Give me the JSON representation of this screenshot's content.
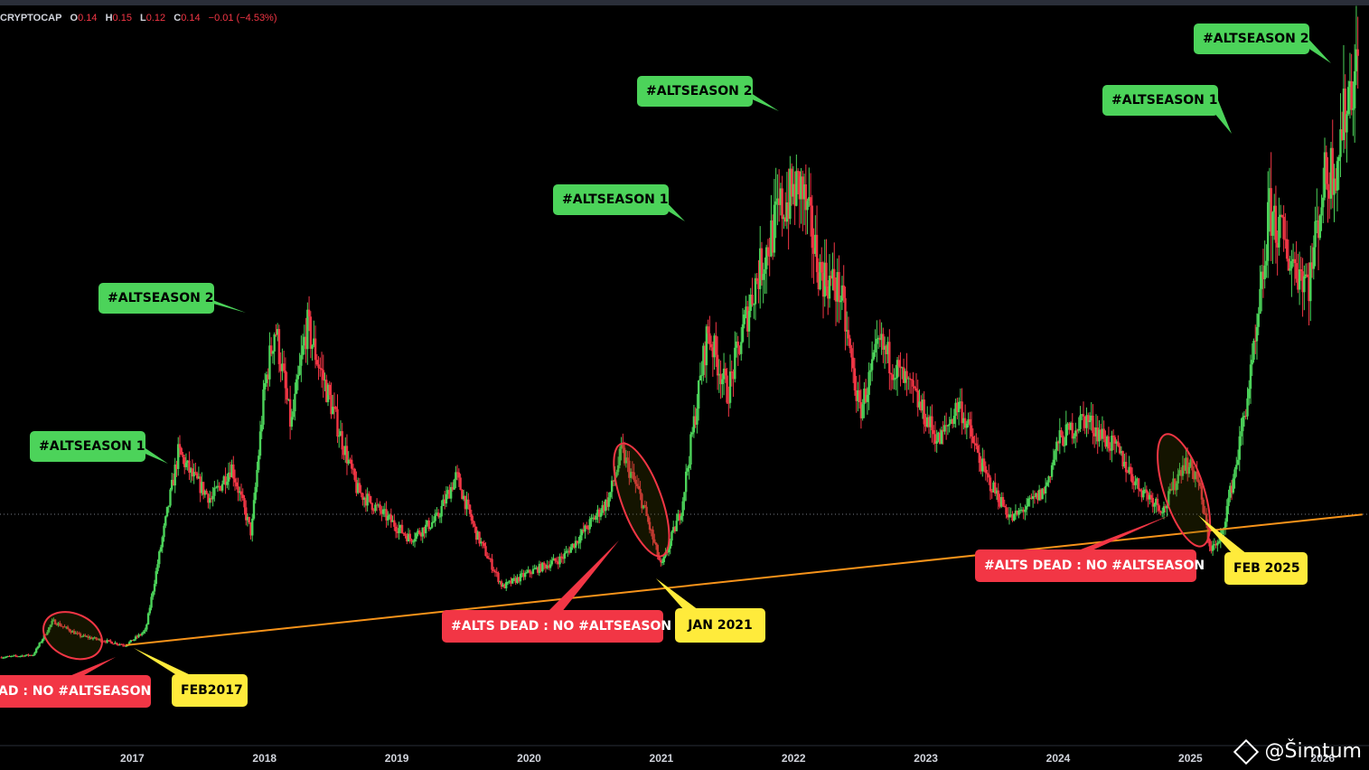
{
  "legend": {
    "symbol": "CRYPTOCAP",
    "open_key": "O",
    "open": "0.14",
    "high_key": "H",
    "high": "0.15",
    "low_key": "L",
    "low": "0.12",
    "close_key": "C",
    "close": "0.14",
    "change": "−0.01 (−4.53%)"
  },
  "colors": {
    "up": "#4cd35a",
    "down": "#f23645",
    "trendline": "#f7931a",
    "green_label": "#4cd35a",
    "red_label": "#f23645",
    "yellow_label": "#ffeb3b"
  },
  "chart_data": {
    "type": "candlestick",
    "x_ticks": [
      "2017",
      "2018",
      "2019",
      "2020",
      "2021",
      "2022",
      "2023",
      "2024",
      "2025",
      "2026"
    ],
    "x_range": [
      2016.0,
      2026.35
    ],
    "price_path": [
      [
        2016.0,
        0.075
      ],
      [
        2016.25,
        0.08
      ],
      [
        2016.4,
        0.15
      ],
      [
        2016.6,
        0.12
      ],
      [
        2016.95,
        0.1
      ],
      [
        2017.1,
        0.13
      ],
      [
        2017.2,
        0.28
      ],
      [
        2017.35,
        0.5
      ],
      [
        2017.45,
        0.45
      ],
      [
        2017.6,
        0.4
      ],
      [
        2017.75,
        0.47
      ],
      [
        2017.9,
        0.33
      ],
      [
        2018.0,
        0.63
      ],
      [
        2018.08,
        0.76
      ],
      [
        2018.2,
        0.55
      ],
      [
        2018.32,
        0.76
      ],
      [
        2018.5,
        0.6
      ],
      [
        2018.7,
        0.42
      ],
      [
        2018.9,
        0.37
      ],
      [
        2019.1,
        0.32
      ],
      [
        2019.3,
        0.36
      ],
      [
        2019.45,
        0.45
      ],
      [
        2019.6,
        0.33
      ],
      [
        2019.8,
        0.22
      ],
      [
        2020.0,
        0.25
      ],
      [
        2020.25,
        0.28
      ],
      [
        2020.4,
        0.33
      ],
      [
        2020.6,
        0.4
      ],
      [
        2020.7,
        0.5
      ],
      [
        2020.85,
        0.4
      ],
      [
        2021.0,
        0.26
      ],
      [
        2021.15,
        0.38
      ],
      [
        2021.35,
        0.75
      ],
      [
        2021.5,
        0.62
      ],
      [
        2021.7,
        0.84
      ],
      [
        2021.9,
        1.0
      ],
      [
        2022.05,
        1.05
      ],
      [
        2022.2,
        0.87
      ],
      [
        2022.35,
        0.83
      ],
      [
        2022.5,
        0.58
      ],
      [
        2022.65,
        0.72
      ],
      [
        2022.9,
        0.62
      ],
      [
        2023.1,
        0.52
      ],
      [
        2023.25,
        0.6
      ],
      [
        2023.45,
        0.45
      ],
      [
        2023.65,
        0.36
      ],
      [
        2023.9,
        0.42
      ],
      [
        2024.0,
        0.52
      ],
      [
        2024.2,
        0.57
      ],
      [
        2024.45,
        0.5
      ],
      [
        2024.6,
        0.43
      ],
      [
        2024.8,
        0.38
      ],
      [
        2024.95,
        0.48
      ],
      [
        2025.05,
        0.45
      ],
      [
        2025.15,
        0.3
      ],
      [
        2025.22,
        0.31
      ],
      [
        2025.35,
        0.48
      ],
      [
        2025.5,
        0.73
      ],
      [
        2025.6,
        1.0
      ],
      [
        2025.75,
        0.9
      ],
      [
        2025.9,
        0.85
      ],
      [
        2026.0,
        1.05
      ],
      [
        2026.1,
        1.1
      ],
      [
        2026.2,
        1.25
      ],
      [
        2026.27,
        1.3
      ]
    ],
    "trendline": {
      "from": [
        2016.95,
        0.1
      ],
      "to": [
        2026.3,
        0.37
      ]
    },
    "annotations": [
      {
        "text": "#ALTSEASON 1",
        "color": "green"
      },
      {
        "text": "#ALTSEASON 2",
        "color": "green"
      },
      {
        "text": "#ALTSEASON 1",
        "color": "green"
      },
      {
        "text": "#ALTSEASON 2",
        "color": "green"
      },
      {
        "text": "#ALTSEASON 1",
        "color": "green"
      },
      {
        "text": "#ALTSEASON 2",
        "color": "green"
      },
      {
        "text": "AD : NO #ALTSEASON",
        "color": "red"
      },
      {
        "text": "#ALTS DEAD : NO #ALTSEASON",
        "color": "red"
      },
      {
        "text": "#ALTS DEAD : NO #ALTSEASON",
        "color": "red"
      },
      {
        "text": "FEB2017",
        "color": "yellow"
      },
      {
        "text": "JAN 2021",
        "color": "yellow"
      },
      {
        "text": "FEB 2025",
        "color": "yellow"
      }
    ]
  },
  "watermark": {
    "text": "@Šimtum"
  }
}
